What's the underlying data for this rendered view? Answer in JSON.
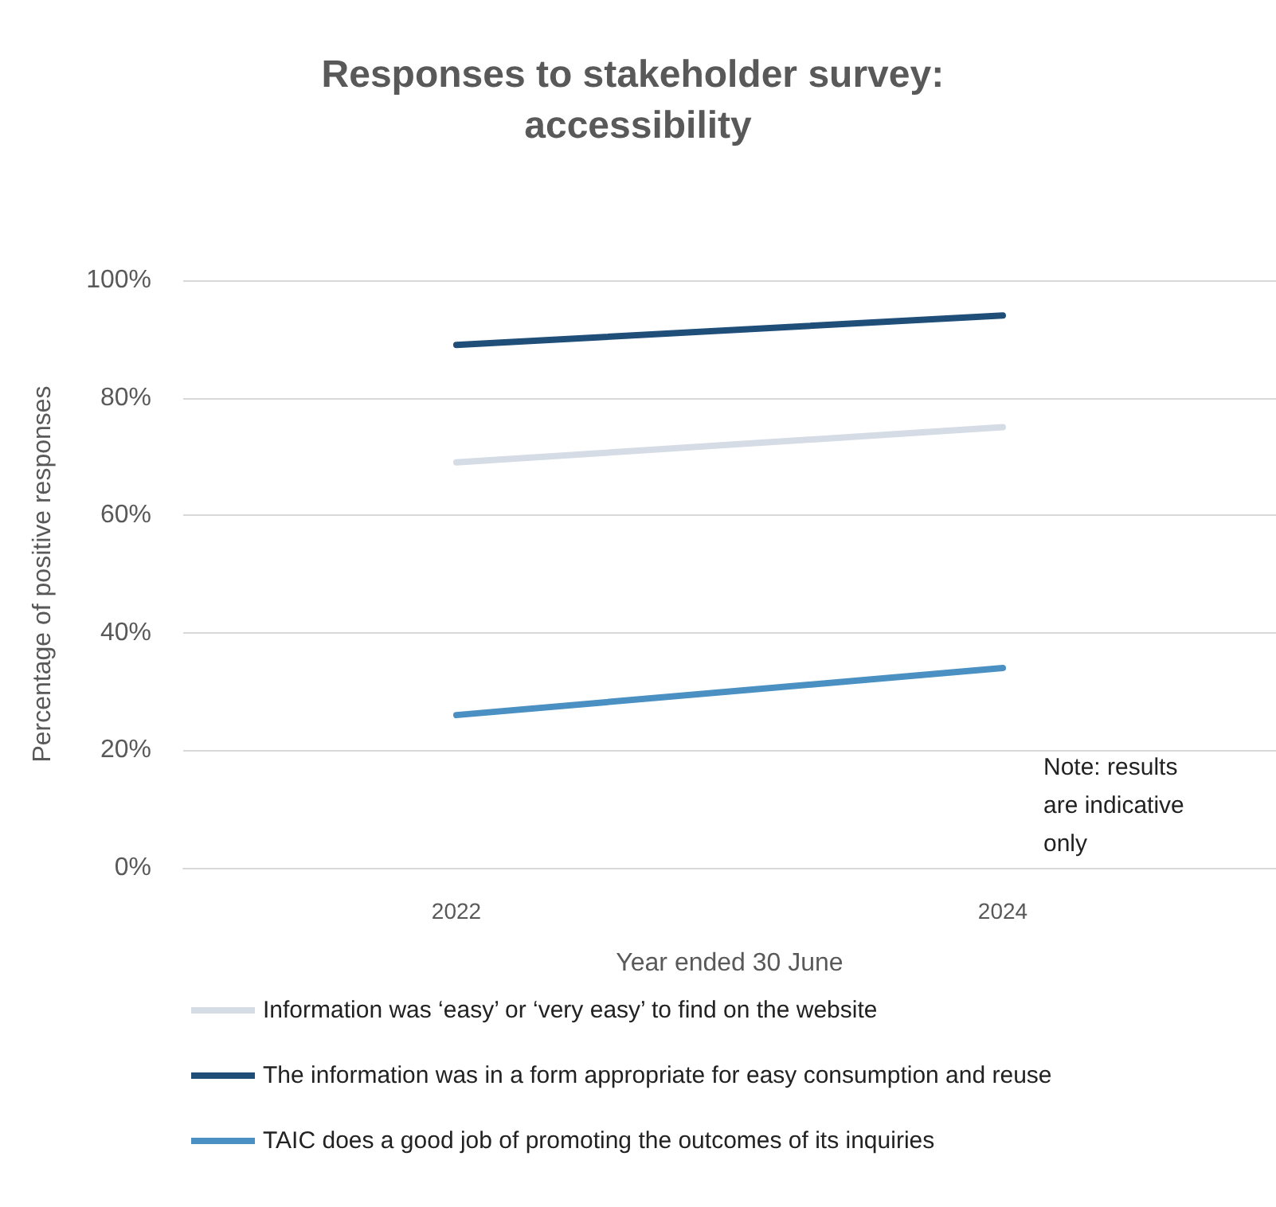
{
  "chart_data": {
    "type": "line",
    "title": "Responses to stakeholder survey: accessibility",
    "xlabel": "Year ended 30 June",
    "ylabel": "Percentage of positive responses",
    "categories": [
      "2022",
      "2024"
    ],
    "series": [
      {
        "name": "Information was ‘easy’ or ‘very easy’ to find on the website",
        "color": "#d6dce5",
        "values": [
          69,
          75
        ]
      },
      {
        "name": "The information was in a form appropriate for easy consumption and reuse",
        "color": "#1f4e79",
        "values": [
          89,
          94
        ]
      },
      {
        "name": "TAIC does a good job of promoting the outcomes of its inquiries",
        "color": "#4a90c2",
        "values": [
          26,
          34
        ]
      }
    ],
    "ylim": [
      0,
      100
    ],
    "yticks": [
      {
        "value": 0,
        "label": "0%"
      },
      {
        "value": 20,
        "label": "20%"
      },
      {
        "value": 40,
        "label": "40%"
      },
      {
        "value": 60,
        "label": "60%"
      },
      {
        "value": 80,
        "label": "80%"
      },
      {
        "value": 100,
        "label": "100%"
      }
    ],
    "grid": "y",
    "legend": "bottom",
    "marker": "none",
    "line_style": "solid",
    "annotations": [
      "Note: results are indicative only"
    ]
  }
}
